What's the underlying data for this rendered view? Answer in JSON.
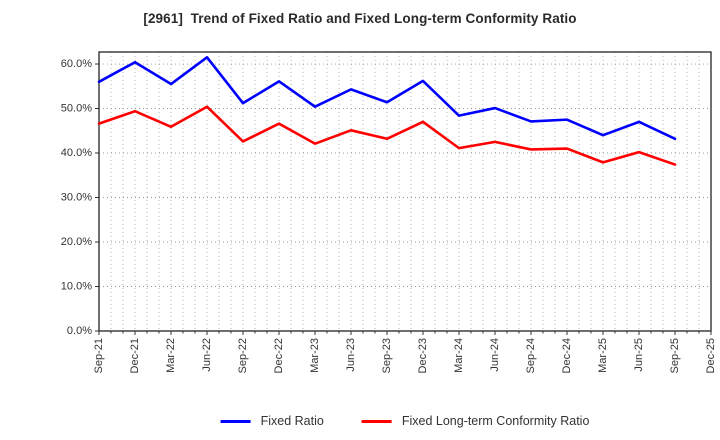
{
  "header": {
    "title": "[2961]  Trend of Fixed Ratio and Fixed Long-term Conformity Ratio"
  },
  "chart_data": {
    "type": "line",
    "title": "[2961]  Trend of Fixed Ratio and Fixed Long-term Conformity Ratio",
    "categories": [
      "Sep-21",
      "Dec-21",
      "Mar-22",
      "Jun-22",
      "Sep-22",
      "Dec-22",
      "Mar-23",
      "Jun-23",
      "Sep-23",
      "Dec-23",
      "Mar-24",
      "Jun-24",
      "Sep-24",
      "Dec-24",
      "Mar-25",
      "Jun-25",
      "Sep-25",
      "Dec-25"
    ],
    "series": [
      {
        "name": "Fixed Ratio",
        "color": "#0000ff",
        "values": [
          56.0,
          60.4,
          55.5,
          61.5,
          51.2,
          56.1,
          50.4,
          54.3,
          51.4,
          56.2,
          48.4,
          50.1,
          47.1,
          47.5,
          44.0,
          47.0,
          43.2
        ]
      },
      {
        "name": "Fixed Long-term Conformity Ratio",
        "color": "#ff0000",
        "values": [
          46.6,
          49.4,
          45.9,
          50.4,
          42.6,
          46.6,
          42.1,
          45.1,
          43.2,
          47.0,
          41.1,
          42.5,
          40.8,
          41.0,
          37.9,
          40.2,
          37.4
        ]
      }
    ],
    "xlabel": "",
    "ylabel": "",
    "ylim": [
      0,
      62.7
    ],
    "yticks": [
      0,
      10,
      20,
      30,
      40,
      50,
      60
    ],
    "ytick_labels": [
      "0.0%",
      "10.0%",
      "20.0%",
      "30.0%",
      "40.0%",
      "50.0%",
      "60.0%"
    ],
    "grid": true,
    "minor_x_per_interval": 3,
    "legend_position": "bottom-center",
    "colors": {
      "grid": "#b0b0b0",
      "spine": "#333333",
      "tick_text": "#333333",
      "background": "#ffffff"
    }
  }
}
